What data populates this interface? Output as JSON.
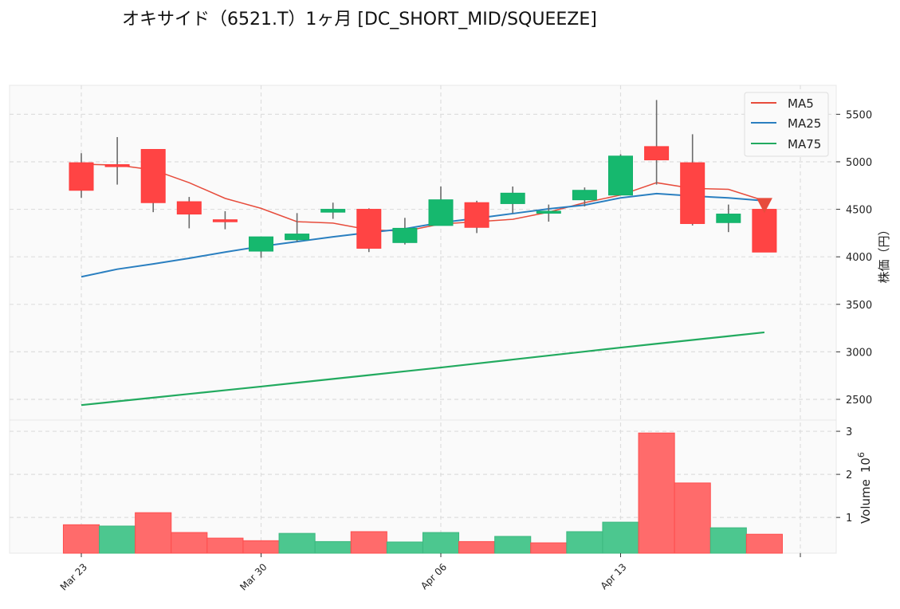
{
  "chart_data": {
    "type": "candlestick",
    "title": "オキサイド（6521.T）1ヶ月 [DC_SHORT_MID/SQUEEZE]",
    "ylabel": "株価（円）",
    "volume_ylabel": "Volume",
    "volume_unit": "10",
    "volume_unit_exp": "6",
    "ylim": [
      2282,
      5805
    ],
    "volume_ylim": [
      0.17,
      3.26
    ],
    "yticks": [
      2500,
      3000,
      3500,
      4000,
      4500,
      5000,
      5500
    ],
    "volume_yticks": [
      1,
      2,
      3
    ],
    "xtick_labels": [
      "Mar 23",
      "Mar 30",
      "Apr 06",
      "Apr 13",
      ""
    ],
    "grid": true,
    "legend_placement": "top-right",
    "colors": {
      "up": "#16b86e",
      "down": "#ff4444",
      "wick": "#6b6b6b",
      "ma5": "#e74c3c",
      "ma25": "#2a7fc0",
      "ma75": "#22aa5f",
      "vol_up": "#4cc78f",
      "vol_down": "#ff6b6b",
      "signal": "#e74c3c"
    },
    "dates": [
      "Mar 23",
      "Mar 24",
      "Mar 25",
      "Mar 26",
      "Mar 27",
      "Mar 30",
      "Mar 31",
      "Apr 01",
      "Apr 02",
      "Apr 03",
      "Apr 06",
      "Apr 07",
      "Apr 08",
      "Apr 09",
      "Apr 10",
      "Apr 13",
      "Apr 14",
      "Apr 15",
      "Apr 16",
      "Apr 17"
    ],
    "open": [
      4990,
      4970,
      5130,
      4580,
      4390,
      4060,
      4180,
      4470,
      4500,
      4150,
      4330,
      4570,
      4560,
      4460,
      4600,
      4650,
      5160,
      4990,
      4360,
      4500
    ],
    "high": [
      5090,
      5260,
      5130,
      4630,
      4480,
      4210,
      4460,
      4570,
      4510,
      4410,
      4740,
      4590,
      4740,
      4550,
      4730,
      5080,
      5650,
      5290,
      4550,
      4500
    ],
    "low": [
      4620,
      4760,
      4470,
      4300,
      4290,
      3990,
      4160,
      4400,
      4050,
      4130,
      4330,
      4250,
      4460,
      4370,
      4530,
      4650,
      4760,
      4330,
      4260,
      4050
    ],
    "close": [
      4700,
      4950,
      4570,
      4450,
      4370,
      4210,
      4240,
      4500,
      4090,
      4300,
      4600,
      4310,
      4670,
      4480,
      4700,
      5060,
      5020,
      4350,
      4450,
      4050
    ],
    "volume_millions": [
      0.83,
      0.8,
      1.11,
      0.65,
      0.52,
      0.46,
      0.63,
      0.44,
      0.67,
      0.43,
      0.65,
      0.44,
      0.56,
      0.41,
      0.67,
      0.89,
      2.96,
      1.8,
      0.76,
      0.61
    ],
    "volume_direction": [
      "down",
      "up",
      "down",
      "down",
      "down",
      "down",
      "up",
      "up",
      "down",
      "up",
      "up",
      "down",
      "up",
      "down",
      "up",
      "up",
      "down",
      "down",
      "up",
      "down"
    ],
    "series": [
      {
        "name": "MA5",
        "values": [
          4975,
          4965,
          4915,
          4780,
          4615,
          4510,
          4370,
          4355,
          4285,
          4270,
          4345,
          4370,
          4395,
          4470,
          4570,
          4650,
          4780,
          4720,
          4710,
          4590
        ]
      },
      {
        "name": "MA25",
        "values": [
          3790,
          3870,
          3925,
          3985,
          4050,
          4110,
          4160,
          4210,
          4255,
          4295,
          4360,
          4405,
          4455,
          4505,
          4545,
          4620,
          4665,
          4640,
          4620,
          4590
        ]
      },
      {
        "name": "MA75",
        "values": [
          2440,
          2479,
          2518,
          2557,
          2596,
          2635,
          2675,
          2715,
          2755,
          2795,
          2835,
          2877,
          2919,
          2961,
          3003,
          3045,
          3085,
          3125,
          3165,
          3205
        ]
      }
    ],
    "signals": [
      {
        "date": "Apr 17",
        "type": "sell",
        "marker": "triangle-down",
        "price": 4560
      }
    ]
  }
}
